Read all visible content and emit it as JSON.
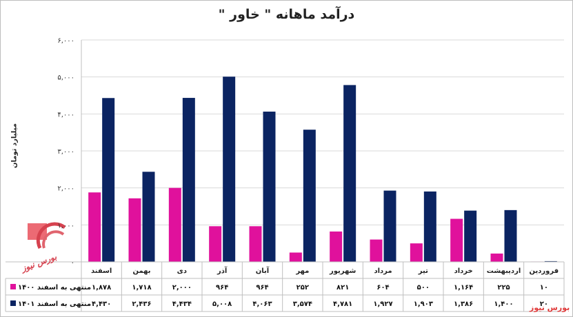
{
  "chart_data": {
    "type": "bar",
    "title": "درآمد ماهانه \" خاور \"",
    "ylabel": "میلیارد تومان",
    "ylim": [
      0,
      6000
    ],
    "yticks": [
      0,
      1000,
      2000,
      3000,
      4000,
      5000,
      6000
    ],
    "ytick_labels": [
      "۰",
      "۱,۰۰۰",
      "۲,۰۰۰",
      "۳,۰۰۰",
      "۴,۰۰۰",
      "۵,۰۰۰",
      "۶,۰۰۰"
    ],
    "grid": true,
    "categories": [
      "فروردین",
      "اردیبهشت",
      "خرداد",
      "تیر",
      "مرداد",
      "شهریور",
      "مهر",
      "آبان",
      "آذر",
      "دی",
      "بهمن",
      "اسفند"
    ],
    "series": [
      {
        "name": "منتهی به اسفند ۱۴۰۰",
        "color": "#e0119c",
        "values": [
          10,
          225,
          1164,
          500,
          604,
          821,
          252,
          964,
          964,
          2000,
          1718,
          1878
        ],
        "labels": [
          "۱۰",
          "۲۲۵",
          "۱,۱۶۴",
          "۵۰۰",
          "۶۰۴",
          "۸۲۱",
          "۲۵۲",
          "۹۶۴",
          "۹۶۴",
          "۲,۰۰۰",
          "۱,۷۱۸",
          "۱,۸۷۸"
        ]
      },
      {
        "name": "منتهی به اسفند ۱۴۰۱",
        "color": "#0b2462",
        "values": [
          20,
          1400,
          1386,
          1903,
          1927,
          4781,
          3574,
          4063,
          5008,
          4434,
          2436,
          4430
        ],
        "labels": [
          "۲۰",
          "۱,۴۰۰",
          "۱,۳۸۶",
          "۱,۹۰۳",
          "۱,۹۲۷",
          "۴,۷۸۱",
          "۳,۵۷۴",
          "۴,۰۶۳",
          "۵,۰۰۸",
          "۴,۴۳۴",
          "۲,۴۳۶",
          "۴,۴۳۰"
        ]
      }
    ]
  },
  "watermark": {
    "text": "بورس نیوز",
    "brand": "بورس نیوز",
    "color": "#d6424f"
  }
}
